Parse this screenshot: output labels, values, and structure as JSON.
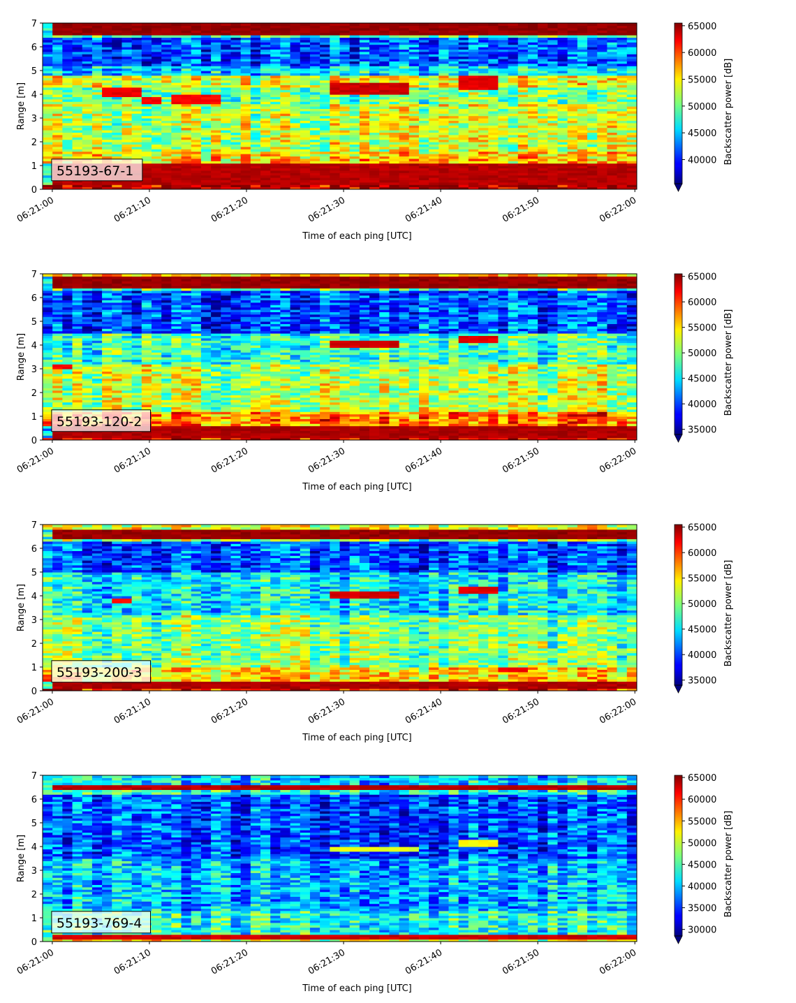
{
  "chart_data": [
    {
      "type": "heatmap",
      "panel_label": "55193-67-1",
      "xlabel": "Time of each ping [UTC]",
      "ylabel": "Range [m]",
      "x_range": [
        "06:21:00",
        "06:22:00"
      ],
      "xticks": [
        "06:21:00",
        "06:21:10",
        "06:21:20",
        "06:21:30",
        "06:21:40",
        "06:21:50",
        "06:22:00"
      ],
      "ylim": [
        0,
        7
      ],
      "yticks": [
        "0",
        "1",
        "2",
        "3",
        "4",
        "5",
        "6",
        "7"
      ],
      "colorbar": {
        "label": "Backscatter power [dB]",
        "colormap": "jet",
        "vmin": 35500,
        "vmax": 65500,
        "extend": "min",
        "ticks": [
          40000,
          45000,
          50000,
          55000,
          60000,
          65000
        ],
        "tick_labels": [
          "40000",
          "45000",
          "50000",
          "55000",
          "60000",
          "65000"
        ]
      },
      "features": [
        {
          "t0": 0,
          "t1": 60,
          "r0": 6.5,
          "r1": 7.0,
          "v": 1.0
        },
        {
          "t0": 0,
          "t1": 60,
          "r0": 0.2,
          "r1": 1.1,
          "v": 0.97
        },
        {
          "t0": 5.5,
          "t1": 9.5,
          "r0": 3.9,
          "r1": 4.3,
          "v": 0.92
        },
        {
          "t0": 9.5,
          "t1": 11.5,
          "r0": 3.6,
          "r1": 3.9,
          "v": 0.9
        },
        {
          "t0": 12.5,
          "t1": 17,
          "r0": 3.6,
          "r1": 4.0,
          "v": 0.9
        },
        {
          "t0": 29,
          "t1": 37,
          "r0": 4.0,
          "r1": 4.5,
          "v": 0.95
        },
        {
          "t0": 41.5,
          "t1": 45.5,
          "r0": 4.2,
          "r1": 4.8,
          "v": 0.93
        }
      ],
      "background_profile": [
        {
          "r0": 0,
          "r1": 0.2,
          "v": 0.95
        },
        {
          "r0": 1.1,
          "r1": 1.6,
          "v": 0.66
        },
        {
          "r0": 1.6,
          "r1": 3.6,
          "v": 0.56
        },
        {
          "r0": 3.6,
          "r1": 4.3,
          "v": 0.48
        },
        {
          "r0": 4.3,
          "r1": 4.8,
          "v": 0.6
        },
        {
          "r0": 4.8,
          "r1": 5.2,
          "v": 0.33
        },
        {
          "r0": 5.2,
          "r1": 6.4,
          "v": 0.2
        },
        {
          "r0": 6.4,
          "r1": 6.5,
          "v": 0.45
        }
      ]
    },
    {
      "type": "heatmap",
      "panel_label": "55193-120-2",
      "xlabel": "Time of each ping [UTC]",
      "ylabel": "Range [m]",
      "x_range": [
        "06:21:00",
        "06:22:00"
      ],
      "xticks": [
        "06:21:00",
        "06:21:10",
        "06:21:20",
        "06:21:30",
        "06:21:40",
        "06:21:50",
        "06:22:00"
      ],
      "ylim": [
        0,
        7
      ],
      "yticks": [
        "0",
        "1",
        "2",
        "3",
        "4",
        "5",
        "6",
        "7"
      ],
      "colorbar": {
        "label": "Backscatter power [dB]",
        "colormap": "jet",
        "vmin": 34000,
        "vmax": 65500,
        "extend": "min",
        "ticks": [
          35000,
          40000,
          45000,
          50000,
          55000,
          60000,
          65000
        ],
        "tick_labels": [
          "35000",
          "40000",
          "45000",
          "50000",
          "55000",
          "60000",
          "65000"
        ]
      },
      "features": [
        {
          "t0": 0,
          "t1": 60,
          "r0": 6.4,
          "r1": 6.9,
          "v": 1.0
        },
        {
          "t0": 0,
          "t1": 60,
          "r0": 0.1,
          "r1": 0.6,
          "v": 0.98
        },
        {
          "t0": 0,
          "t1": 2,
          "r0": 3.0,
          "r1": 3.2,
          "v": 0.9
        },
        {
          "t0": 29,
          "t1": 36,
          "r0": 3.9,
          "r1": 4.2,
          "v": 0.95
        },
        {
          "t0": 41.5,
          "t1": 46,
          "r0": 4.1,
          "r1": 4.4,
          "v": 0.93
        }
      ],
      "background_profile": [
        {
          "r0": 0,
          "r1": 0.1,
          "v": 0.9
        },
        {
          "r0": 0.6,
          "r1": 1.2,
          "v": 0.76
        },
        {
          "r0": 1.2,
          "r1": 3.2,
          "v": 0.56
        },
        {
          "r0": 3.2,
          "r1": 4.5,
          "v": 0.43
        },
        {
          "r0": 4.5,
          "r1": 6.3,
          "v": 0.2
        },
        {
          "r0": 6.3,
          "r1": 6.4,
          "v": 0.45
        },
        {
          "r0": 6.9,
          "r1": 7.0,
          "v": 0.7
        }
      ]
    },
    {
      "type": "heatmap",
      "panel_label": "55193-200-3",
      "xlabel": "Time of each ping [UTC]",
      "ylabel": "Range [m]",
      "x_range": [
        "06:21:00",
        "06:22:00"
      ],
      "xticks": [
        "06:21:00",
        "06:21:10",
        "06:21:20",
        "06:21:30",
        "06:21:40",
        "06:21:50",
        "06:22:00"
      ],
      "ylim": [
        0,
        7
      ],
      "yticks": [
        "0",
        "1",
        "2",
        "3",
        "4",
        "5",
        "6",
        "7"
      ],
      "colorbar": {
        "label": "Backscatter power [dB]",
        "colormap": "jet",
        "vmin": 34000,
        "vmax": 65500,
        "extend": "min",
        "ticks": [
          35000,
          40000,
          45000,
          50000,
          55000,
          60000,
          65000
        ],
        "tick_labels": [
          "35000",
          "40000",
          "45000",
          "50000",
          "55000",
          "60000",
          "65000"
        ]
      },
      "features": [
        {
          "t0": 0,
          "t1": 60,
          "r0": 6.4,
          "r1": 6.8,
          "v": 1.0
        },
        {
          "t0": 0,
          "t1": 60,
          "r0": 0.1,
          "r1": 0.4,
          "v": 0.98
        },
        {
          "t0": 6.5,
          "t1": 8.5,
          "r0": 3.7,
          "r1": 3.9,
          "v": 0.9
        },
        {
          "t0": 29,
          "t1": 36,
          "r0": 3.9,
          "r1": 4.2,
          "v": 0.95
        },
        {
          "t0": 41.5,
          "t1": 46,
          "r0": 4.1,
          "r1": 4.4,
          "v": 0.93
        },
        {
          "t0": 45.5,
          "t1": 48.5,
          "r0": 0.8,
          "r1": 1.0,
          "v": 0.9
        }
      ],
      "background_profile": [
        {
          "r0": 0,
          "r1": 0.1,
          "v": 0.85
        },
        {
          "r0": 0.4,
          "r1": 1.0,
          "v": 0.66
        },
        {
          "r0": 1.0,
          "r1": 3.2,
          "v": 0.5
        },
        {
          "r0": 3.2,
          "r1": 5.0,
          "v": 0.36
        },
        {
          "r0": 5.0,
          "r1": 6.3,
          "v": 0.2
        },
        {
          "r0": 6.3,
          "r1": 6.4,
          "v": 0.5
        },
        {
          "r0": 6.8,
          "r1": 7.0,
          "v": 0.6
        }
      ]
    },
    {
      "type": "heatmap",
      "panel_label": "55193-769-4",
      "xlabel": "Time of each ping [UTC]",
      "ylabel": "Range [m]",
      "x_range": [
        "06:21:00",
        "06:22:00"
      ],
      "xticks": [
        "06:21:00",
        "06:21:10",
        "06:21:20",
        "06:21:30",
        "06:21:40",
        "06:21:50",
        "06:22:00"
      ],
      "ylim": [
        0,
        7
      ],
      "yticks": [
        "0",
        "1",
        "2",
        "3",
        "4",
        "5",
        "6",
        "7"
      ],
      "colorbar": {
        "label": "Backscatter power [dB]",
        "colormap": "jet",
        "vmin": 28500,
        "vmax": 65500,
        "extend": "min",
        "ticks": [
          30000,
          35000,
          40000,
          45000,
          50000,
          55000,
          60000,
          65000
        ],
        "tick_labels": [
          "30000",
          "35000",
          "40000",
          "45000",
          "50000",
          "55000",
          "60000",
          "65000"
        ]
      },
      "features": [
        {
          "t0": 0,
          "t1": 60,
          "r0": 6.4,
          "r1": 6.6,
          "v": 0.97
        },
        {
          "t0": 0,
          "t1": 60,
          "r0": 0.15,
          "r1": 0.3,
          "v": 0.95
        },
        {
          "t0": 29,
          "t1": 38,
          "r0": 3.8,
          "r1": 4.0,
          "v": 0.62
        },
        {
          "t0": 41.5,
          "t1": 45.5,
          "r0": 4.0,
          "r1": 4.3,
          "v": 0.65
        }
      ],
      "background_profile": [
        {
          "r0": 0,
          "r1": 0.15,
          "v": 0.6
        },
        {
          "r0": 0.3,
          "r1": 1.3,
          "v": 0.4
        },
        {
          "r0": 1.3,
          "r1": 3.5,
          "v": 0.3
        },
        {
          "r0": 3.5,
          "r1": 6.2,
          "v": 0.2
        },
        {
          "r0": 6.2,
          "r1": 6.4,
          "v": 0.4
        },
        {
          "r0": 6.6,
          "r1": 7.0,
          "v": 0.33
        }
      ]
    }
  ]
}
